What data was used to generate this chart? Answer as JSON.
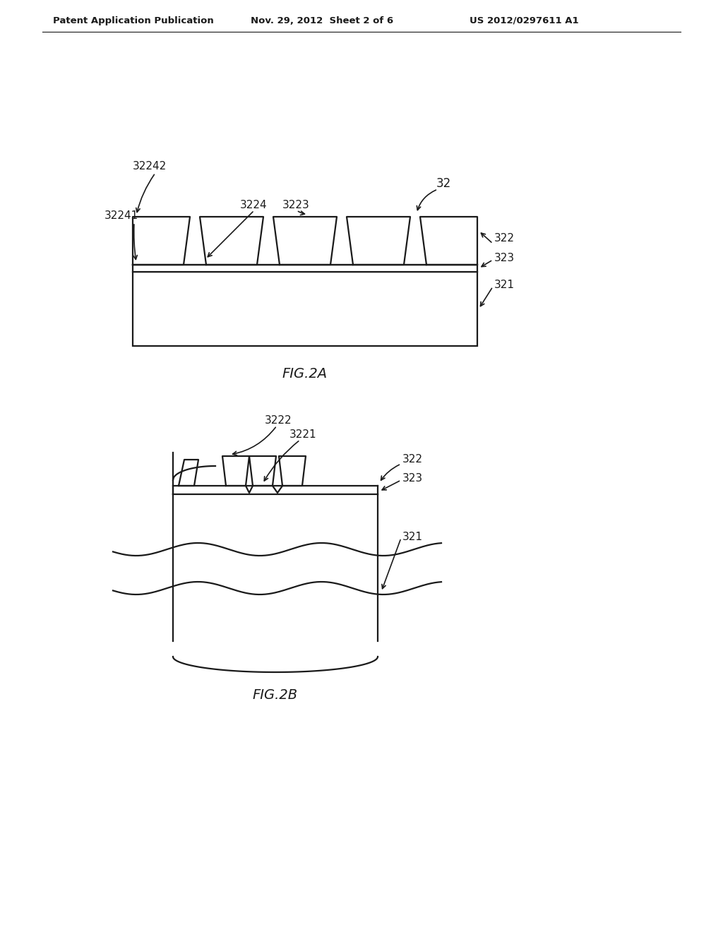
{
  "bg_color": "#ffffff",
  "header_left": "Patent Application Publication",
  "header_mid": "Nov. 29, 2012  Sheet 2 of 6",
  "header_right": "US 2012/0297611 A1",
  "fig2a_label": "FIG.2A",
  "fig2b_label": "FIG.2B",
  "line_color": "#1a1a1a",
  "text_color": "#1a1a1a"
}
